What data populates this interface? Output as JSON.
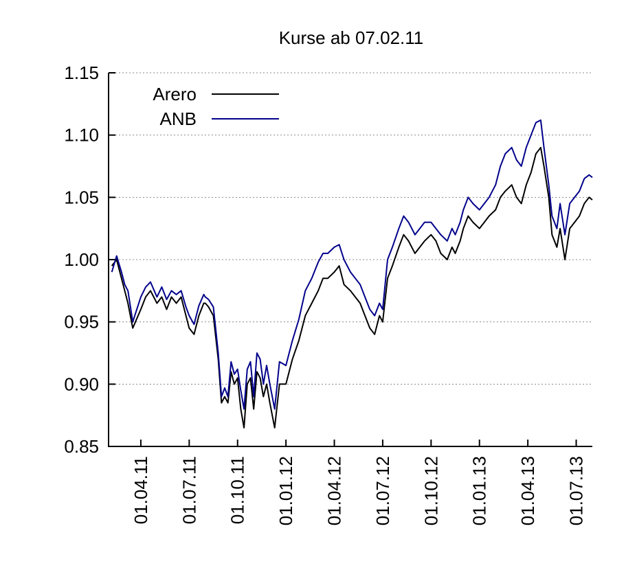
{
  "chart_data": {
    "type": "line",
    "title": "Kurse ab 07.02.11",
    "xlabel": "",
    "ylabel": "",
    "ylim": [
      0.85,
      1.15
    ],
    "xlim": [
      0,
      30
    ],
    "x_unit": "months since 01.02.11",
    "yticks": [
      0.85,
      0.9,
      0.95,
      1.0,
      1.05,
      1.1,
      1.15
    ],
    "ytick_labels": [
      "0.85",
      "0.90",
      "0.95",
      "1.00",
      "1.05",
      "1.10",
      "1.15"
    ],
    "xticks": [
      2,
      5,
      8,
      11,
      14,
      17,
      20,
      23,
      26,
      29
    ],
    "xtick_labels": [
      "01.04.11",
      "01.07.11",
      "01.10.11",
      "01.01.12",
      "01.04.12",
      "01.07.12",
      "01.10.12",
      "01.01.13",
      "01.04.13",
      "01.07.13"
    ],
    "grid": "horizontal dotted",
    "legend_position": "top-left",
    "series": [
      {
        "name": "Arero",
        "color": "#000000",
        "x": [
          0.2,
          0.5,
          0.8,
          1.0,
          1.2,
          1.5,
          2.0,
          2.3,
          2.6,
          3.0,
          3.3,
          3.6,
          3.9,
          4.2,
          4.5,
          4.8,
          5.0,
          5.3,
          5.6,
          5.9,
          6.0,
          6.2,
          6.5,
          6.8,
          7.0,
          7.2,
          7.4,
          7.6,
          7.8,
          8.0,
          8.2,
          8.4,
          8.6,
          8.8,
          9.0,
          9.2,
          9.4,
          9.6,
          9.8,
          10.0,
          10.3,
          10.6,
          11.0,
          11.4,
          11.8,
          12.2,
          12.6,
          13.0,
          13.3,
          13.6,
          14.0,
          14.3,
          14.6,
          15.0,
          15.3,
          15.6,
          15.9,
          16.2,
          16.5,
          16.8,
          17.0,
          17.3,
          17.6,
          18.0,
          18.3,
          18.6,
          19.0,
          19.3,
          19.6,
          20.0,
          20.3,
          20.6,
          21.0,
          21.3,
          21.5,
          21.8,
          22.0,
          22.3,
          22.6,
          23.0,
          23.3,
          23.6,
          24.0,
          24.3,
          24.6,
          25.0,
          25.3,
          25.6,
          25.9,
          26.2,
          26.5,
          26.8,
          27.0,
          27.3,
          27.5,
          27.8,
          28.0,
          28.3,
          28.6,
          28.9,
          29.2,
          29.5,
          29.8,
          30.0
        ],
        "values": [
          0.995,
          1.0,
          0.985,
          0.975,
          0.965,
          0.945,
          0.96,
          0.97,
          0.975,
          0.965,
          0.97,
          0.96,
          0.97,
          0.965,
          0.97,
          0.955,
          0.945,
          0.94,
          0.955,
          0.965,
          0.965,
          0.962,
          0.955,
          0.92,
          0.885,
          0.89,
          0.885,
          0.91,
          0.9,
          0.905,
          0.88,
          0.865,
          0.9,
          0.905,
          0.88,
          0.91,
          0.905,
          0.89,
          0.9,
          0.885,
          0.865,
          0.9,
          0.9,
          0.92,
          0.935,
          0.955,
          0.965,
          0.975,
          0.985,
          0.985,
          0.99,
          0.995,
          0.98,
          0.975,
          0.97,
          0.965,
          0.955,
          0.945,
          0.94,
          0.955,
          0.95,
          0.985,
          0.995,
          1.01,
          1.02,
          1.015,
          1.005,
          1.01,
          1.015,
          1.02,
          1.015,
          1.005,
          1.0,
          1.01,
          1.005,
          1.015,
          1.025,
          1.035,
          1.03,
          1.025,
          1.03,
          1.035,
          1.04,
          1.05,
          1.055,
          1.06,
          1.05,
          1.045,
          1.06,
          1.07,
          1.085,
          1.09,
          1.075,
          1.05,
          1.02,
          1.01,
          1.025,
          1.0,
          1.025,
          1.03,
          1.035,
          1.045,
          1.05,
          1.048
        ]
      },
      {
        "name": "ANB",
        "color": "#00008b",
        "x": [
          0.2,
          0.5,
          0.8,
          1.0,
          1.2,
          1.5,
          2.0,
          2.3,
          2.6,
          3.0,
          3.3,
          3.6,
          3.9,
          4.2,
          4.5,
          4.8,
          5.0,
          5.3,
          5.6,
          5.9,
          6.0,
          6.2,
          6.5,
          6.8,
          7.0,
          7.2,
          7.4,
          7.6,
          7.8,
          8.0,
          8.2,
          8.4,
          8.6,
          8.8,
          9.0,
          9.2,
          9.4,
          9.6,
          9.8,
          10.0,
          10.3,
          10.6,
          11.0,
          11.4,
          11.8,
          12.2,
          12.6,
          13.0,
          13.3,
          13.6,
          14.0,
          14.3,
          14.6,
          15.0,
          15.3,
          15.6,
          15.9,
          16.2,
          16.5,
          16.8,
          17.0,
          17.3,
          17.6,
          18.0,
          18.3,
          18.6,
          19.0,
          19.3,
          19.6,
          20.0,
          20.3,
          20.6,
          21.0,
          21.3,
          21.5,
          21.8,
          22.0,
          22.3,
          22.6,
          23.0,
          23.3,
          23.6,
          24.0,
          24.3,
          24.6,
          25.0,
          25.3,
          25.6,
          25.9,
          26.2,
          26.5,
          26.8,
          27.0,
          27.3,
          27.5,
          27.8,
          28.0,
          28.3,
          28.6,
          28.9,
          29.2,
          29.5,
          29.8,
          30.0
        ],
        "values": [
          0.99,
          1.003,
          0.99,
          0.98,
          0.975,
          0.95,
          0.97,
          0.978,
          0.982,
          0.97,
          0.978,
          0.968,
          0.975,
          0.972,
          0.975,
          0.962,
          0.955,
          0.948,
          0.963,
          0.972,
          0.97,
          0.968,
          0.962,
          0.925,
          0.89,
          0.897,
          0.89,
          0.918,
          0.908,
          0.912,
          0.895,
          0.88,
          0.912,
          0.918,
          0.89,
          0.925,
          0.92,
          0.9,
          0.915,
          0.9,
          0.88,
          0.918,
          0.915,
          0.935,
          0.952,
          0.975,
          0.985,
          0.998,
          1.005,
          1.005,
          1.01,
          1.012,
          1.0,
          0.99,
          0.985,
          0.98,
          0.97,
          0.96,
          0.955,
          0.965,
          0.96,
          1.0,
          1.01,
          1.025,
          1.035,
          1.03,
          1.02,
          1.025,
          1.03,
          1.03,
          1.025,
          1.02,
          1.015,
          1.025,
          1.02,
          1.03,
          1.04,
          1.05,
          1.045,
          1.04,
          1.045,
          1.05,
          1.06,
          1.075,
          1.085,
          1.09,
          1.08,
          1.075,
          1.09,
          1.1,
          1.11,
          1.112,
          1.09,
          1.06,
          1.035,
          1.025,
          1.045,
          1.02,
          1.045,
          1.05,
          1.055,
          1.065,
          1.068,
          1.066
        ]
      }
    ]
  }
}
